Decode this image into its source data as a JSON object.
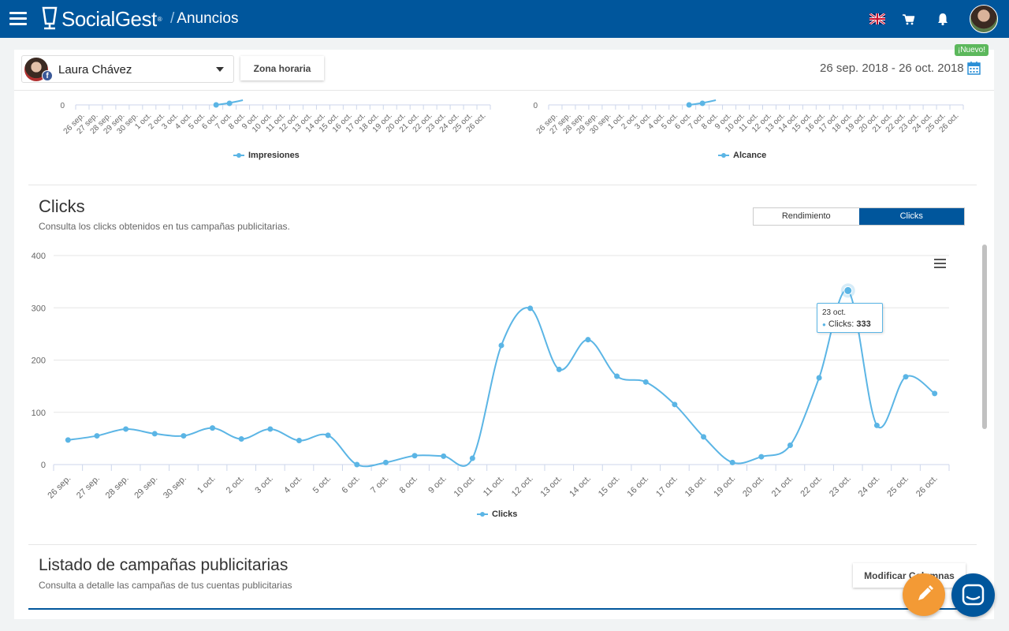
{
  "header": {
    "logo_text": "SocialGest",
    "logo_reg": "®",
    "breadcrumb": "Anuncios",
    "language": "English (UK flag)"
  },
  "toolbar": {
    "account_name": "Laura Chávez",
    "timezone_label": "Zona horaria",
    "new_badge": "¡Nuevo!",
    "date_range": "26 sep. 2018 - 26 oct. 2018"
  },
  "top_charts": {
    "zero_label": "0",
    "left_legend": "Impresiones",
    "right_legend": "Alcance"
  },
  "clicks_section": {
    "title": "Clicks",
    "subtitle": "Consulta los clicks obtenidos en tus campañas publicitarias.",
    "toggle": [
      "Rendimiento",
      "Clicks"
    ],
    "active_toggle": "Clicks",
    "tooltip_date": "23 oct.",
    "tooltip_label": "Clicks: ",
    "tooltip_value": "333"
  },
  "campaigns_section": {
    "title": "Listado de campañas publicitarias",
    "subtitle": "Consulta a detalle las campañas de tus cuentas publicitarias",
    "modify_columns": "Modificar Columnas"
  },
  "colors": {
    "brand": "#00569c",
    "series": "#5bb5e5",
    "fab": "#f39a35",
    "badge": "#5cb85c"
  },
  "chart_data": {
    "type": "line",
    "categories": [
      "26 sep.",
      "27 sep.",
      "28 sep.",
      "29 sep.",
      "30 sep.",
      "1 oct.",
      "2 oct.",
      "3 oct.",
      "4 oct.",
      "5 oct.",
      "6 oct.",
      "7 oct.",
      "8 oct.",
      "9 oct.",
      "10 oct.",
      "11 oct.",
      "12 oct.",
      "13 oct.",
      "14 oct.",
      "15 oct.",
      "16 oct.",
      "17 oct.",
      "18 oct.",
      "19 oct.",
      "20 oct.",
      "21 oct.",
      "22 oct.",
      "23 oct.",
      "24 oct.",
      "25 oct.",
      "26 oct."
    ],
    "series": [
      {
        "name": "Clicks",
        "values": [
          47,
          55,
          68,
          59,
          55,
          70,
          49,
          68,
          46,
          56,
          0,
          4,
          17,
          16,
          12,
          228,
          299,
          182,
          239,
          169,
          158,
          115,
          53,
          4,
          15,
          37,
          166,
          333,
          75,
          168,
          136
        ]
      }
    ],
    "yticks": [
      0,
      100,
      200,
      300,
      400
    ],
    "ylim": [
      0,
      400
    ],
    "grid": true,
    "legend": "bottom-center",
    "highlighted_category": "23 oct."
  },
  "mini_chart_categories": [
    "26 sep.",
    "27 sep.",
    "28 sep.",
    "29 sep.",
    "30 sep.",
    "1 oct.",
    "2 oct.",
    "3 oct.",
    "4 oct.",
    "5 oct.",
    "6 oct.",
    "7 oct.",
    "8 oct.",
    "9 oct.",
    "10 oct.",
    "11 oct.",
    "12 oct.",
    "13 oct.",
    "14 oct.",
    "15 oct.",
    "16 oct.",
    "17 oct.",
    "18 oct.",
    "19 oct.",
    "20 oct.",
    "21 oct.",
    "22 oct.",
    "23 oct.",
    "24 oct.",
    "25 oct.",
    "26 oct."
  ]
}
